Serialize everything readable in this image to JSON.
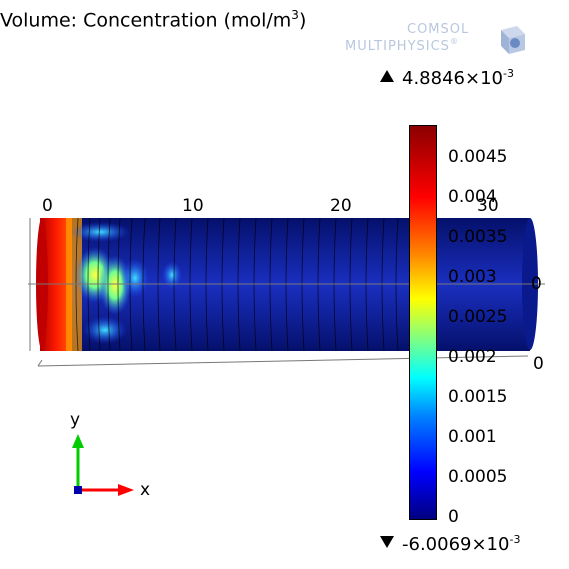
{
  "title": {
    "prefix": "Volume: Concentration (mol/m",
    "sup": "3",
    "suffix": ")"
  },
  "logo": {
    "line1": "COMSOL",
    "line2": "MULTIPHYSICS",
    "mark": "®"
  },
  "color_range": {
    "max_prefix": "4.8846×10",
    "max_exp": "-3",
    "min_prefix": "-6.0069×10",
    "min_exp": "-3"
  },
  "colorbar_ticks": [
    "0.0045",
    "0.004",
    "0.0035",
    "0.003",
    "0.0025",
    "0.002",
    "0.0015",
    "0.001",
    "0.0005",
    "0"
  ],
  "x_axis_ticks": [
    "0",
    "10",
    "20",
    "30"
  ],
  "side_labels": {
    "right_top": "0",
    "right_bottom": "0"
  },
  "triad": {
    "y_label": "y",
    "x_label": "x"
  },
  "colors": {
    "axis_x": "#ff0000",
    "axis_y": "#00cc00",
    "cylinder_base": "#0a1a8c"
  }
}
